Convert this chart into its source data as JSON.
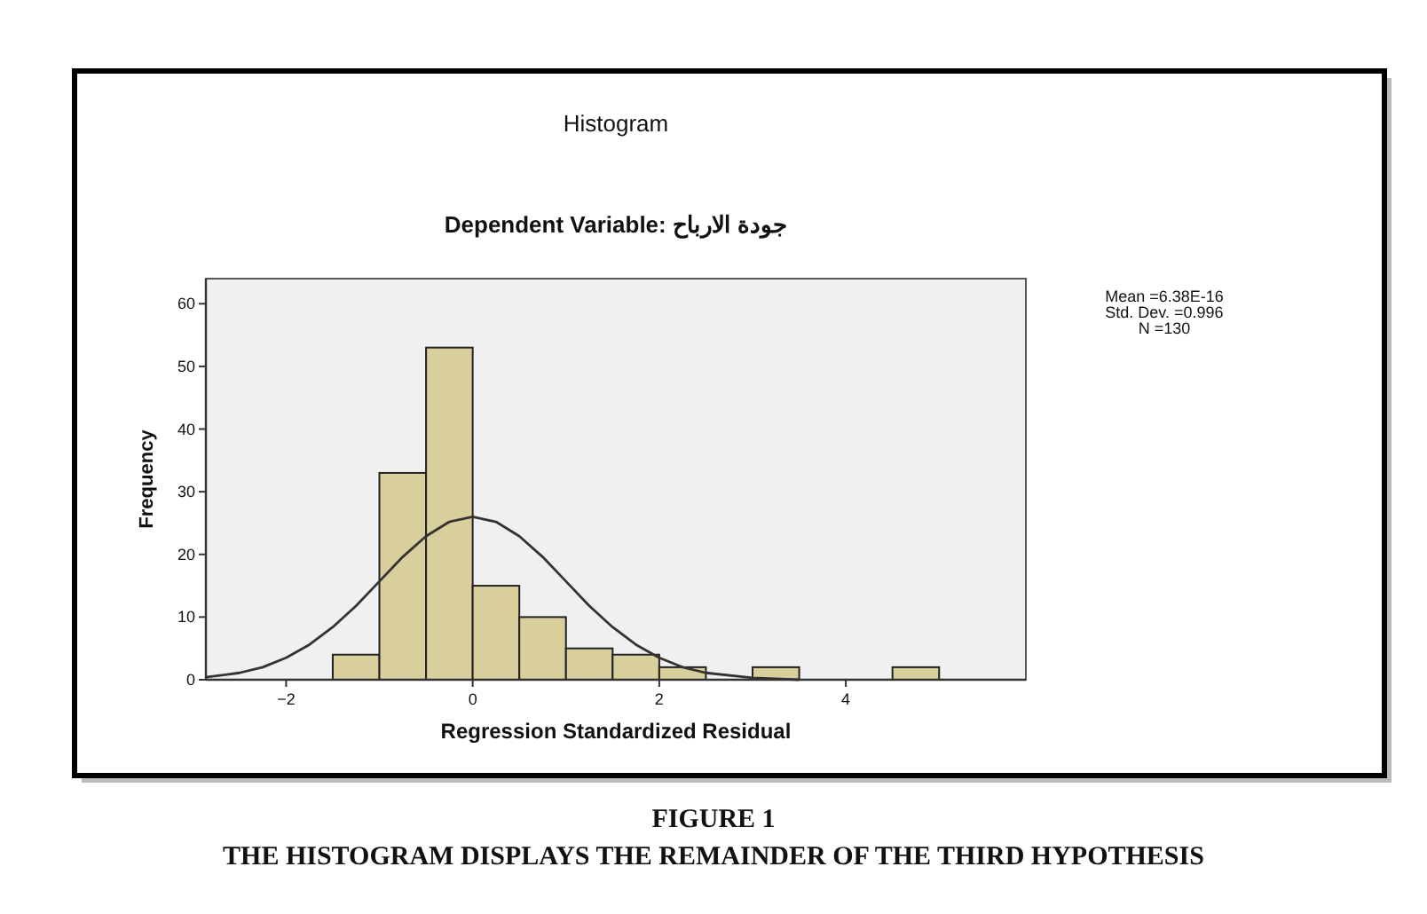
{
  "chart_data": {
    "type": "histogram",
    "title": "Histogram",
    "subtitle": "Dependent Variable: جودة الارباح",
    "xlabel": "Regression Standardized Residual",
    "ylabel": "Frequency",
    "bins": [
      -1.5,
      -1.0,
      -0.5,
      0.0,
      0.5,
      1.0,
      1.5,
      2.0,
      2.5,
      3.0,
      3.5,
      4.0,
      4.5,
      5.0
    ],
    "series": [
      {
        "type": "histogram",
        "color": "#d8cf9c",
        "values": [
          4,
          33,
          53,
          15,
          10,
          5,
          4,
          2,
          0,
          2,
          0,
          0,
          2
        ]
      },
      {
        "type": "line",
        "color": "#333333",
        "x": [
          -2.86,
          -2.5,
          -2.25,
          -2.0,
          -1.75,
          -1.5,
          -1.25,
          -1.0,
          -0.75,
          -0.5,
          -0.25,
          0.0,
          0.25,
          0.5,
          0.75,
          1.0,
          1.25,
          1.5,
          1.75,
          2.0,
          2.25,
          2.5,
          3.0,
          3.5
        ],
        "values": [
          0.4,
          1.1,
          2.0,
          3.5,
          5.6,
          8.4,
          11.8,
          15.7,
          19.6,
          22.9,
          25.2,
          26.0,
          25.2,
          22.9,
          19.6,
          15.7,
          11.8,
          8.4,
          5.6,
          3.5,
          2.0,
          1.1,
          0.3,
          0.0
        ]
      }
    ],
    "xlim": [
      -2.86,
      5.93
    ],
    "ylim": [
      0,
      64
    ],
    "xticks": [
      -2,
      0,
      2,
      4
    ],
    "yticks": [
      0,
      10,
      20,
      30,
      40,
      50,
      60
    ],
    "annotations": [
      "Mean =6.38E-16",
      "Std. Dev. =0.996",
      "N =130",
      "FIGURE 1",
      "THE HISTOGRAM DISPLAYS THE REMAINDER OF THE THIRD HYPOTHESIS"
    ]
  }
}
